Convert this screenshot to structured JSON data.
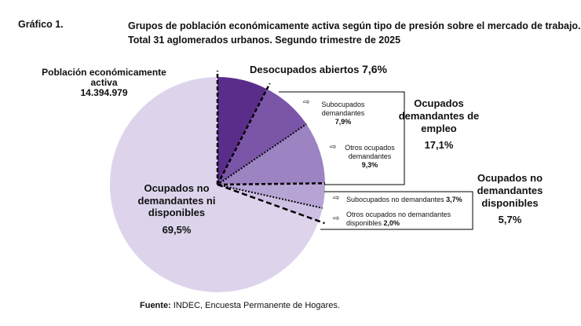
{
  "header": {
    "label": "Gráfico 1.",
    "title_line1": "Grupos de población económicamente activa según tipo de presión sobre el mercado de trabajo.",
    "title_line2": "Total 31 aglomerados urbanos. Segundo trimestre de 2025"
  },
  "pea": {
    "label": "Población económicamente activa",
    "value": "14.394.979"
  },
  "labels": {
    "desocupados_name": "Desocupados abiertos",
    "desocupados_pct": "7,6%",
    "odd_name": "Ocupados demandantes de empleo",
    "odd_pct": "17,1%",
    "sub_dem_name": "Subocupados demandantes",
    "sub_dem_pct": "7,9%",
    "otros_dem_name": "Otros ocupados demandantes",
    "otros_dem_pct": "9,3%",
    "ond_name": "Ocupados no demandantes disponibles",
    "ond_pct": "5,7%",
    "sub_nd_name": "Subocupados no demandantes",
    "sub_nd_pct": "3,7%",
    "otros_nd_name": "Otros ocupados no demandantes disponibles",
    "otros_nd_pct": "2,0%",
    "ondnd_name": "Ocupados no demandantes ni disponibles",
    "ondnd_pct": "69,5%"
  },
  "arrow_glyph": "⇨",
  "source": {
    "label": "Fuente:",
    "text": "INDEC, Encuesta Permanente de Hogares."
  },
  "colors": {
    "desocupados": "#5b2d8a",
    "sub_dem": "#7a55a8",
    "otros_dem": "#9c83c2",
    "sub_nd": "#b6a4d4",
    "otros_nd": "#cdc0e3",
    "ondnd": "#ddd4ec",
    "background": "#ffffff",
    "text": "#111111"
  },
  "chart_data": {
    "type": "pie",
    "title": "Grupos de población económicamente activa según tipo de presión sobre el mercado de trabajo. Total 31 aglomerados urbanos. Segundo trimestre de 2025",
    "total_label": "Población económicamente activa",
    "total_value": 14394979,
    "slices": [
      {
        "key": "desocupados",
        "name": "Desocupados abiertos",
        "value": 7.6
      },
      {
        "key": "sub_dem",
        "name": "Subocupados demandantes",
        "value": 7.9,
        "group": "Ocupados demandantes de empleo"
      },
      {
        "key": "otros_dem",
        "name": "Otros ocupados demandantes",
        "value": 9.3,
        "group": "Ocupados demandantes de empleo"
      },
      {
        "key": "sub_nd",
        "name": "Subocupados no demandantes",
        "value": 3.7,
        "group": "Ocupados no demandantes disponibles"
      },
      {
        "key": "otros_nd",
        "name": "Otros ocupados no demandantes disponibles",
        "value": 2.0,
        "group": "Ocupados no demandantes disponibles"
      },
      {
        "key": "ondnd",
        "name": "Ocupados no demandantes ni disponibles",
        "value": 69.5
      }
    ],
    "groups": [
      {
        "name": "Desocupados abiertos",
        "value": 7.6
      },
      {
        "name": "Ocupados demandantes de empleo",
        "value": 17.1
      },
      {
        "name": "Ocupados no demandantes disponibles",
        "value": 5.7
      },
      {
        "name": "Ocupados no demandantes ni disponibles",
        "value": 69.5
      }
    ],
    "unit": "%",
    "start": "12 o'clock, clockwise"
  }
}
